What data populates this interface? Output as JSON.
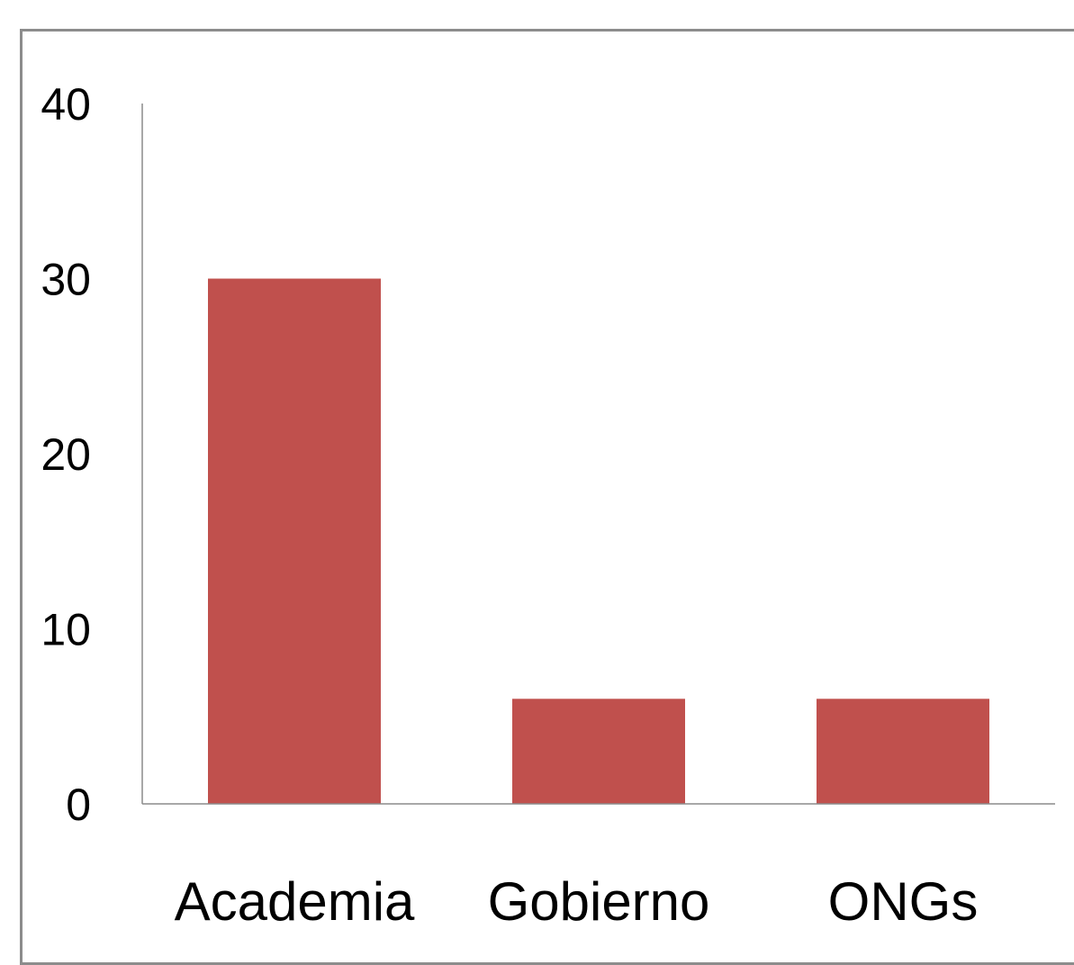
{
  "chart_data": {
    "type": "bar",
    "title": "",
    "xlabel": "",
    "ylabel": "",
    "categories": [
      "Academia",
      "Gobierno",
      "ONGs"
    ],
    "values": [
      30,
      6,
      6
    ],
    "ylim": [
      0,
      40
    ],
    "yticks": [
      "0",
      "10",
      "20",
      "30",
      "40"
    ],
    "grid": false,
    "legend": "none",
    "colors": {
      "bar": "#c0504d",
      "axis": "#8c8c8c",
      "frame": "#8c8c8c",
      "text": "#000000"
    }
  }
}
